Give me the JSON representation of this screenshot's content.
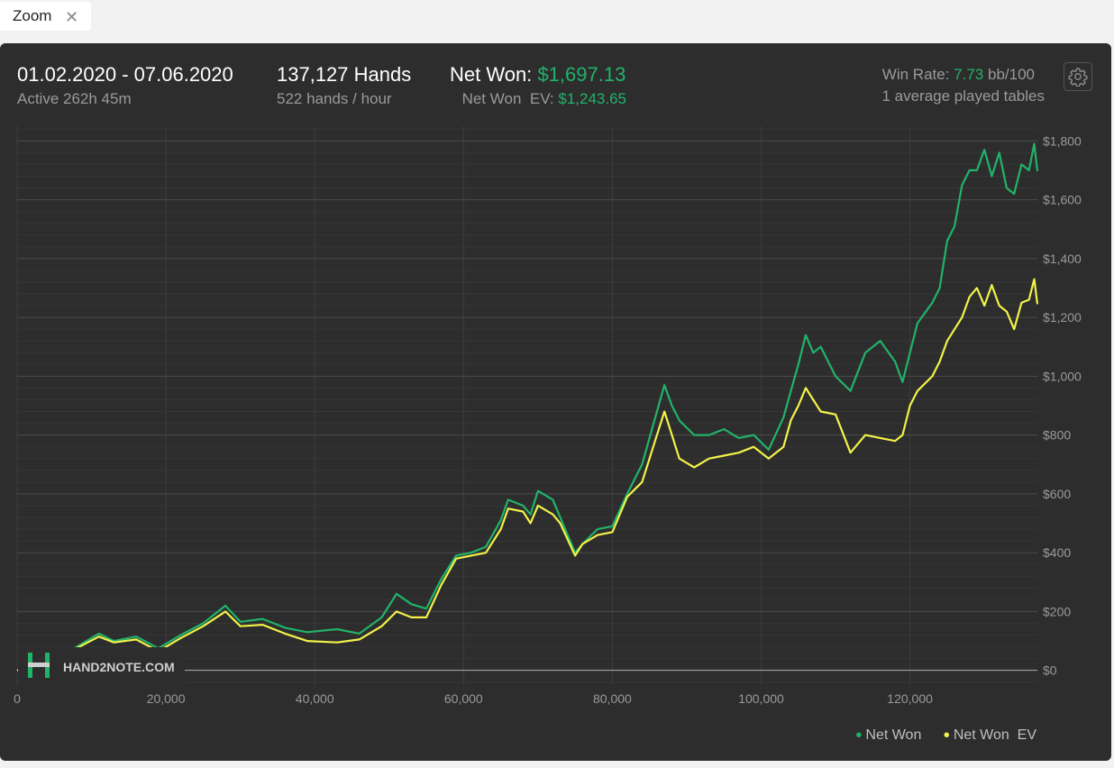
{
  "zoom_tab": {
    "label": "Zoom",
    "close_icon": "close-icon"
  },
  "header": {
    "date_range": "01.02.2020 - 07.06.2020",
    "active_time": "Active 262h 45m",
    "hands_total": "137,127 Hands",
    "hands_rate": "522 hands / hour",
    "net_won_label": "Net Won:",
    "net_won_value": "$1,697.13",
    "net_won_ev_label": "Net Won  EV:",
    "net_won_ev_value": "$1,243.65",
    "win_rate_label": "Win Rate:",
    "win_rate_value": "7.73",
    "win_rate_unit": "bb/100",
    "tables": "1 average played tables",
    "settings_icon": "gear-icon"
  },
  "watermark": {
    "text": "HAND2NOTE.COM",
    "icon": "h2n-logo-icon"
  },
  "colors": {
    "net_won": "#21b36a",
    "net_won_ev": "#f2f24a",
    "background": "#2d2d2d"
  },
  "chart_data": {
    "type": "line",
    "xlim": [
      0,
      137127
    ],
    "ylim": [
      -50,
      1850
    ],
    "x_ticks": [
      0,
      20000,
      40000,
      60000,
      80000,
      100000,
      120000
    ],
    "x_tick_labels": [
      "0",
      "20,000",
      "40,000",
      "60,000",
      "80,000",
      "100,000",
      "120,000"
    ],
    "y_ticks": [
      0,
      200,
      400,
      600,
      800,
      1000,
      1200,
      1400,
      1600,
      1800
    ],
    "y_tick_labels": [
      "$0",
      "$200",
      "$400",
      "$600",
      "$800",
      "$1,000",
      "$1,200",
      "$1,400",
      "$1,600",
      "$1,800"
    ],
    "grid": true,
    "legend_position": "bottom-right",
    "series": [
      {
        "name": "Net Won",
        "color": "#21b36a",
        "points": [
          [
            0,
            0
          ],
          [
            2000,
            10
          ],
          [
            5000,
            40
          ],
          [
            8000,
            80
          ],
          [
            11000,
            125
          ],
          [
            13000,
            100
          ],
          [
            16000,
            115
          ],
          [
            19000,
            75
          ],
          [
            22000,
            120
          ],
          [
            25000,
            160
          ],
          [
            28000,
            220
          ],
          [
            30000,
            165
          ],
          [
            33000,
            175
          ],
          [
            36000,
            145
          ],
          [
            39000,
            130
          ],
          [
            43000,
            140
          ],
          [
            46000,
            125
          ],
          [
            49000,
            180
          ],
          [
            51000,
            260
          ],
          [
            53000,
            225
          ],
          [
            55000,
            210
          ],
          [
            57000,
            310
          ],
          [
            59000,
            390
          ],
          [
            61000,
            400
          ],
          [
            63000,
            420
          ],
          [
            65000,
            510
          ],
          [
            66000,
            580
          ],
          [
            68000,
            560
          ],
          [
            69000,
            530
          ],
          [
            70000,
            610
          ],
          [
            72000,
            580
          ],
          [
            73000,
            520
          ],
          [
            75000,
            400
          ],
          [
            76000,
            430
          ],
          [
            78000,
            480
          ],
          [
            80000,
            490
          ],
          [
            82000,
            600
          ],
          [
            84000,
            700
          ],
          [
            86000,
            880
          ],
          [
            87000,
            970
          ],
          [
            88000,
            900
          ],
          [
            89000,
            850
          ],
          [
            91000,
            800
          ],
          [
            93000,
            800
          ],
          [
            95000,
            820
          ],
          [
            97000,
            790
          ],
          [
            99000,
            800
          ],
          [
            101000,
            750
          ],
          [
            103000,
            860
          ],
          [
            104000,
            950
          ],
          [
            105000,
            1040
          ],
          [
            106000,
            1140
          ],
          [
            107000,
            1080
          ],
          [
            108000,
            1100
          ],
          [
            110000,
            1000
          ],
          [
            112000,
            950
          ],
          [
            114000,
            1080
          ],
          [
            116000,
            1120
          ],
          [
            118000,
            1050
          ],
          [
            119000,
            980
          ],
          [
            120000,
            1080
          ],
          [
            121000,
            1180
          ],
          [
            123000,
            1250
          ],
          [
            124000,
            1300
          ],
          [
            125000,
            1460
          ],
          [
            126000,
            1510
          ],
          [
            127000,
            1650
          ],
          [
            128000,
            1700
          ],
          [
            129000,
            1700
          ],
          [
            130000,
            1770
          ],
          [
            131000,
            1680
          ],
          [
            132000,
            1760
          ],
          [
            133000,
            1640
          ],
          [
            134000,
            1620
          ],
          [
            135000,
            1720
          ],
          [
            136000,
            1700
          ],
          [
            136700,
            1790
          ],
          [
            137127,
            1697
          ]
        ]
      },
      {
        "name": "Net Won  EV",
        "color": "#f2f24a",
        "points": [
          [
            0,
            0
          ],
          [
            2000,
            10
          ],
          [
            5000,
            35
          ],
          [
            8000,
            75
          ],
          [
            11000,
            115
          ],
          [
            13000,
            95
          ],
          [
            16000,
            105
          ],
          [
            19000,
            65
          ],
          [
            22000,
            110
          ],
          [
            25000,
            150
          ],
          [
            28000,
            200
          ],
          [
            30000,
            150
          ],
          [
            33000,
            155
          ],
          [
            36000,
            125
          ],
          [
            39000,
            100
          ],
          [
            43000,
            95
          ],
          [
            46000,
            105
          ],
          [
            49000,
            150
          ],
          [
            51000,
            200
          ],
          [
            53000,
            180
          ],
          [
            55000,
            180
          ],
          [
            57000,
            290
          ],
          [
            59000,
            380
          ],
          [
            61000,
            390
          ],
          [
            63000,
            400
          ],
          [
            65000,
            480
          ],
          [
            66000,
            550
          ],
          [
            68000,
            540
          ],
          [
            69000,
            500
          ],
          [
            70000,
            560
          ],
          [
            72000,
            530
          ],
          [
            73000,
            500
          ],
          [
            75000,
            390
          ],
          [
            76000,
            430
          ],
          [
            78000,
            460
          ],
          [
            80000,
            470
          ],
          [
            82000,
            590
          ],
          [
            84000,
            640
          ],
          [
            86000,
            800
          ],
          [
            87000,
            880
          ],
          [
            88000,
            800
          ],
          [
            89000,
            720
          ],
          [
            91000,
            690
          ],
          [
            93000,
            720
          ],
          [
            95000,
            730
          ],
          [
            97000,
            740
          ],
          [
            99000,
            760
          ],
          [
            101000,
            720
          ],
          [
            103000,
            760
          ],
          [
            104000,
            850
          ],
          [
            105000,
            900
          ],
          [
            106000,
            960
          ],
          [
            107000,
            920
          ],
          [
            108000,
            880
          ],
          [
            110000,
            870
          ],
          [
            112000,
            740
          ],
          [
            114000,
            800
          ],
          [
            116000,
            790
          ],
          [
            118000,
            780
          ],
          [
            119000,
            800
          ],
          [
            120000,
            900
          ],
          [
            121000,
            950
          ],
          [
            123000,
            1000
          ],
          [
            124000,
            1050
          ],
          [
            125000,
            1120
          ],
          [
            126000,
            1160
          ],
          [
            127000,
            1200
          ],
          [
            128000,
            1270
          ],
          [
            129000,
            1300
          ],
          [
            130000,
            1240
          ],
          [
            131000,
            1310
          ],
          [
            132000,
            1240
          ],
          [
            133000,
            1220
          ],
          [
            134000,
            1160
          ],
          [
            135000,
            1250
          ],
          [
            136000,
            1260
          ],
          [
            136700,
            1330
          ],
          [
            137127,
            1245
          ]
        ]
      }
    ]
  },
  "legend": {
    "net_won": "Net Won",
    "net_won_ev": "Net Won  EV"
  }
}
